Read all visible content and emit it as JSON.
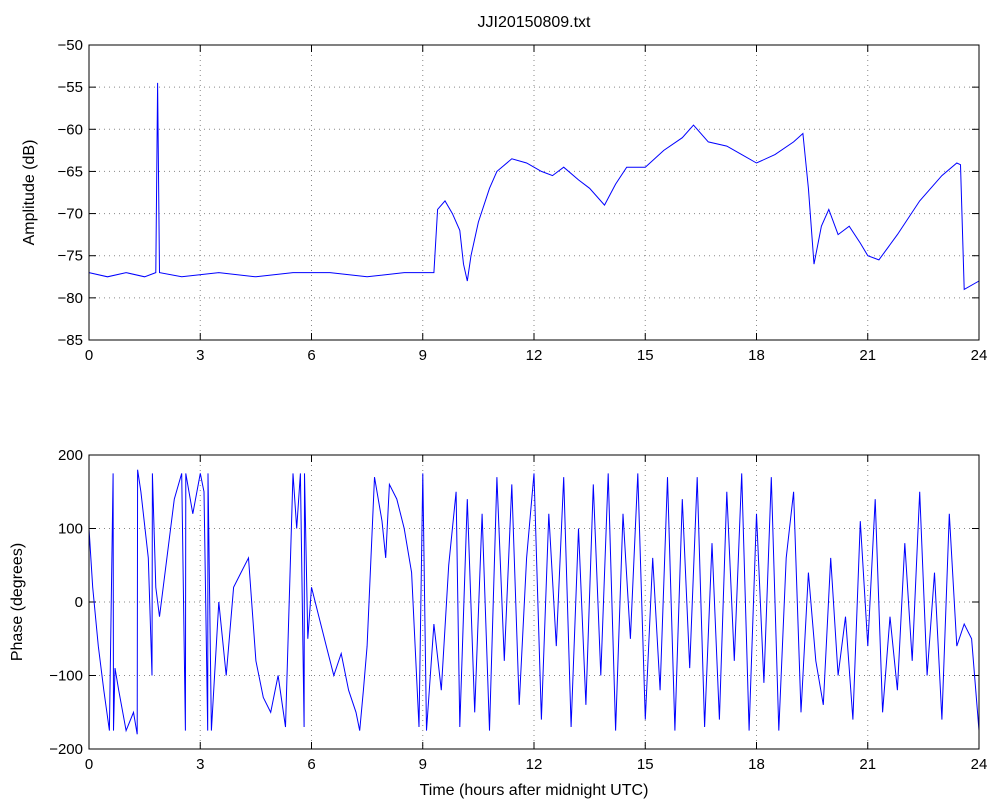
{
  "chart_data": [
    {
      "type": "line",
      "title": "JJI20150809.txt",
      "xlabel": "",
      "ylabel": "Amplitude (dB)",
      "xlim": [
        0,
        24
      ],
      "ylim": [
        -85,
        -50
      ],
      "xticks": [
        "0",
        "3",
        "6",
        "9",
        "12",
        "15",
        "18",
        "21",
        "24"
      ],
      "yticks": [
        "−85",
        "−80",
        "−75",
        "−70",
        "−65",
        "−60",
        "−55",
        "−50"
      ],
      "grid": true,
      "color": "#0000ff",
      "x": [
        0,
        0.5,
        1.0,
        1.5,
        1.8,
        1.85,
        1.9,
        2.5,
        3.5,
        4.5,
        5.5,
        6.5,
        7.5,
        8.5,
        9.2,
        9.3,
        9.4,
        9.6,
        9.8,
        10.0,
        10.1,
        10.2,
        10.3,
        10.5,
        10.8,
        11.0,
        11.4,
        11.8,
        12.2,
        12.5,
        12.8,
        13.2,
        13.5,
        13.9,
        14.2,
        14.5,
        15.0,
        15.5,
        16.0,
        16.3,
        16.7,
        17.2,
        17.6,
        18.0,
        18.5,
        19.0,
        19.25,
        19.4,
        19.55,
        19.75,
        19.95,
        20.2,
        20.5,
        20.8,
        21.0,
        21.3,
        21.8,
        22.4,
        23.0,
        23.4,
        23.5,
        23.6,
        24.0
      ],
      "y": [
        -77,
        -77.5,
        -77,
        -77.5,
        -77,
        -54.5,
        -77,
        -77.5,
        -77,
        -77.5,
        -77,
        -77,
        -77.5,
        -77,
        -77,
        -77,
        -69.5,
        -68.5,
        -70,
        -72,
        -76,
        -78,
        -75,
        -71,
        -67,
        -65,
        -63.5,
        -64,
        -65,
        -65.5,
        -64.5,
        -66,
        -67,
        -69,
        -66.5,
        -64.5,
        -64.5,
        -62.5,
        -61,
        -59.5,
        -61.5,
        -62,
        -63,
        -64,
        -63,
        -61.5,
        -60.5,
        -67,
        -76,
        -71.5,
        -69.5,
        -72.5,
        -71.5,
        -73.5,
        -75,
        -75.5,
        -72.5,
        -68.5,
        -65.5,
        -64,
        -64.2,
        -79,
        -78
      ]
    },
    {
      "type": "line",
      "title": "",
      "xlabel": "Time (hours after midnight UTC)",
      "ylabel": "Phase (degrees)",
      "xlim": [
        0,
        24
      ],
      "ylim": [
        -200,
        200
      ],
      "xticks": [
        "0",
        "3",
        "6",
        "9",
        "12",
        "15",
        "18",
        "21",
        "24"
      ],
      "yticks": [
        "−200",
        "−100",
        "0",
        "100",
        "200"
      ],
      "grid": true,
      "color": "#0000ff",
      "x": [
        0,
        0.1,
        0.25,
        0.4,
        0.55,
        0.65,
        0.66,
        0.7,
        0.8,
        1.0,
        1.2,
        1.3,
        1.31,
        1.4,
        1.6,
        1.7,
        1.71,
        1.8,
        1.9,
        2.1,
        2.3,
        2.5,
        2.6,
        2.61,
        2.8,
        3.0,
        3.1,
        3.2,
        3.21,
        3.3,
        3.5,
        3.7,
        3.9,
        4.1,
        4.3,
        4.5,
        4.7,
        4.9,
        5.1,
        5.3,
        5.5,
        5.6,
        5.7,
        5.8,
        5.81,
        5.9,
        6.0,
        6.2,
        6.4,
        6.6,
        6.8,
        7.0,
        7.2,
        7.3,
        7.4,
        7.5,
        7.7,
        7.9,
        8.0,
        8.1,
        8.3,
        8.5,
        8.7,
        8.9,
        9.0,
        9.1,
        9.3,
        9.5,
        9.7,
        9.9,
        10.0,
        10.2,
        10.4,
        10.6,
        10.8,
        11.0,
        11.2,
        11.4,
        11.6,
        11.8,
        12.0,
        12.2,
        12.4,
        12.6,
        12.8,
        13.0,
        13.2,
        13.4,
        13.6,
        13.8,
        14.0,
        14.2,
        14.4,
        14.6,
        14.8,
        15.0,
        15.2,
        15.4,
        15.6,
        15.8,
        16.0,
        16.2,
        16.4,
        16.6,
        16.8,
        17.0,
        17.2,
        17.4,
        17.6,
        17.8,
        18.0,
        18.2,
        18.4,
        18.6,
        18.8,
        19.0,
        19.2,
        19.4,
        19.6,
        19.8,
        20.0,
        20.2,
        20.4,
        20.6,
        20.8,
        21.0,
        21.2,
        21.4,
        21.6,
        21.8,
        22.0,
        22.2,
        22.4,
        22.6,
        22.8,
        23.0,
        23.2,
        23.4,
        23.6,
        23.8,
        24.0
      ],
      "y": [
        100,
        20,
        -60,
        -120,
        -175,
        175,
        -175,
        -90,
        -120,
        -175,
        -150,
        -180,
        180,
        150,
        60,
        -100,
        175,
        20,
        -20,
        60,
        140,
        175,
        -175,
        175,
        120,
        175,
        150,
        -175,
        175,
        -175,
        0,
        -100,
        20,
        40,
        60,
        -80,
        -130,
        -150,
        -100,
        -170,
        175,
        100,
        175,
        -170,
        175,
        -50,
        20,
        -20,
        -60,
        -100,
        -70,
        -120,
        -150,
        -175,
        -120,
        -60,
        170,
        110,
        60,
        160,
        140,
        100,
        40,
        -170,
        175,
        -175,
        -30,
        -120,
        50,
        150,
        -170,
        140,
        -150,
        120,
        -175,
        170,
        -80,
        160,
        -140,
        60,
        175,
        -160,
        120,
        -60,
        170,
        -170,
        100,
        -140,
        160,
        -100,
        175,
        -175,
        120,
        -50,
        175,
        -160,
        60,
        -120,
        170,
        -175,
        140,
        -90,
        170,
        -170,
        80,
        -160,
        150,
        -80,
        175,
        -175,
        120,
        -110,
        170,
        -175,
        60,
        150,
        -150,
        40,
        -80,
        -140,
        60,
        -100,
        -20,
        -160,
        110,
        -60,
        140,
        -150,
        -20,
        -120,
        80,
        -80,
        150,
        -100,
        40,
        -160,
        120,
        -60,
        -30,
        -50,
        -175
      ]
    }
  ]
}
